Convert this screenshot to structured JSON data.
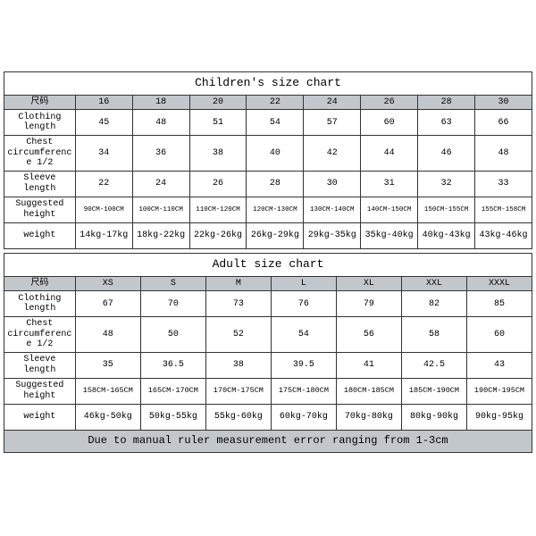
{
  "children": {
    "title": "Children's size chart",
    "label_col": "尺码",
    "sizes": [
      "16",
      "18",
      "20",
      "22",
      "24",
      "26",
      "28",
      "30"
    ],
    "rows": [
      {
        "label": "Clothing length",
        "vals": [
          "45",
          "48",
          "51",
          "54",
          "57",
          "60",
          "63",
          "66"
        ]
      },
      {
        "label": "Chest circumference 1/2",
        "vals": [
          "34",
          "36",
          "38",
          "40",
          "42",
          "44",
          "46",
          "48"
        ]
      },
      {
        "label": "Sleeve length",
        "vals": [
          "22",
          "24",
          "26",
          "28",
          "30",
          "31",
          "32",
          "33"
        ]
      },
      {
        "label": "Suggested height",
        "vals": [
          "90CM-100CM",
          "100CM-110CM",
          "110CM-120CM",
          "120CM-130CM",
          "130CM-140CM",
          "140CM-150CM",
          "150CM-155CM",
          "155CM-158CM"
        ],
        "tiny": true
      },
      {
        "label": "weight",
        "vals": [
          "14kg-17kg",
          "18kg-22kg",
          "22kg-26kg",
          "26kg-29kg",
          "29kg-35kg",
          "35kg-40kg",
          "40kg-43kg",
          "43kg-46kg"
        ]
      }
    ]
  },
  "adult": {
    "title": "Adult size chart",
    "label_col": "尺码",
    "sizes": [
      "XS",
      "S",
      "M",
      "L",
      "XL",
      "XXL",
      "XXXL"
    ],
    "rows": [
      {
        "label": "Clothing length",
        "vals": [
          "67",
          "70",
          "73",
          "76",
          "79",
          "82",
          "85"
        ]
      },
      {
        "label": "Chest circumference 1/2",
        "vals": [
          "48",
          "50",
          "52",
          "54",
          "56",
          "58",
          "60"
        ]
      },
      {
        "label": "Sleeve length",
        "vals": [
          "35",
          "36.5",
          "38",
          "39.5",
          "41",
          "42.5",
          "43"
        ]
      },
      {
        "label": "Suggested height",
        "vals": [
          "158CM-165CM",
          "165CM-170CM",
          "170CM-175CM",
          "175CM-180CM",
          "180CM-185CM",
          "185CM-190CM",
          "190CM-195CM"
        ],
        "fs": "8.5px"
      },
      {
        "label": "weight",
        "vals": [
          "46kg-50kg",
          "50kg-55kg",
          "55kg-60kg",
          "60kg-70kg",
          "70kg-80kg",
          "80kg-90kg",
          "90kg-95kg"
        ]
      }
    ],
    "note": "Due to manual ruler measurement error ranging from 1-3cm"
  },
  "colors": {
    "header_bg": "#c2c7cc",
    "border": "#333333",
    "bg": "#ffffff"
  }
}
